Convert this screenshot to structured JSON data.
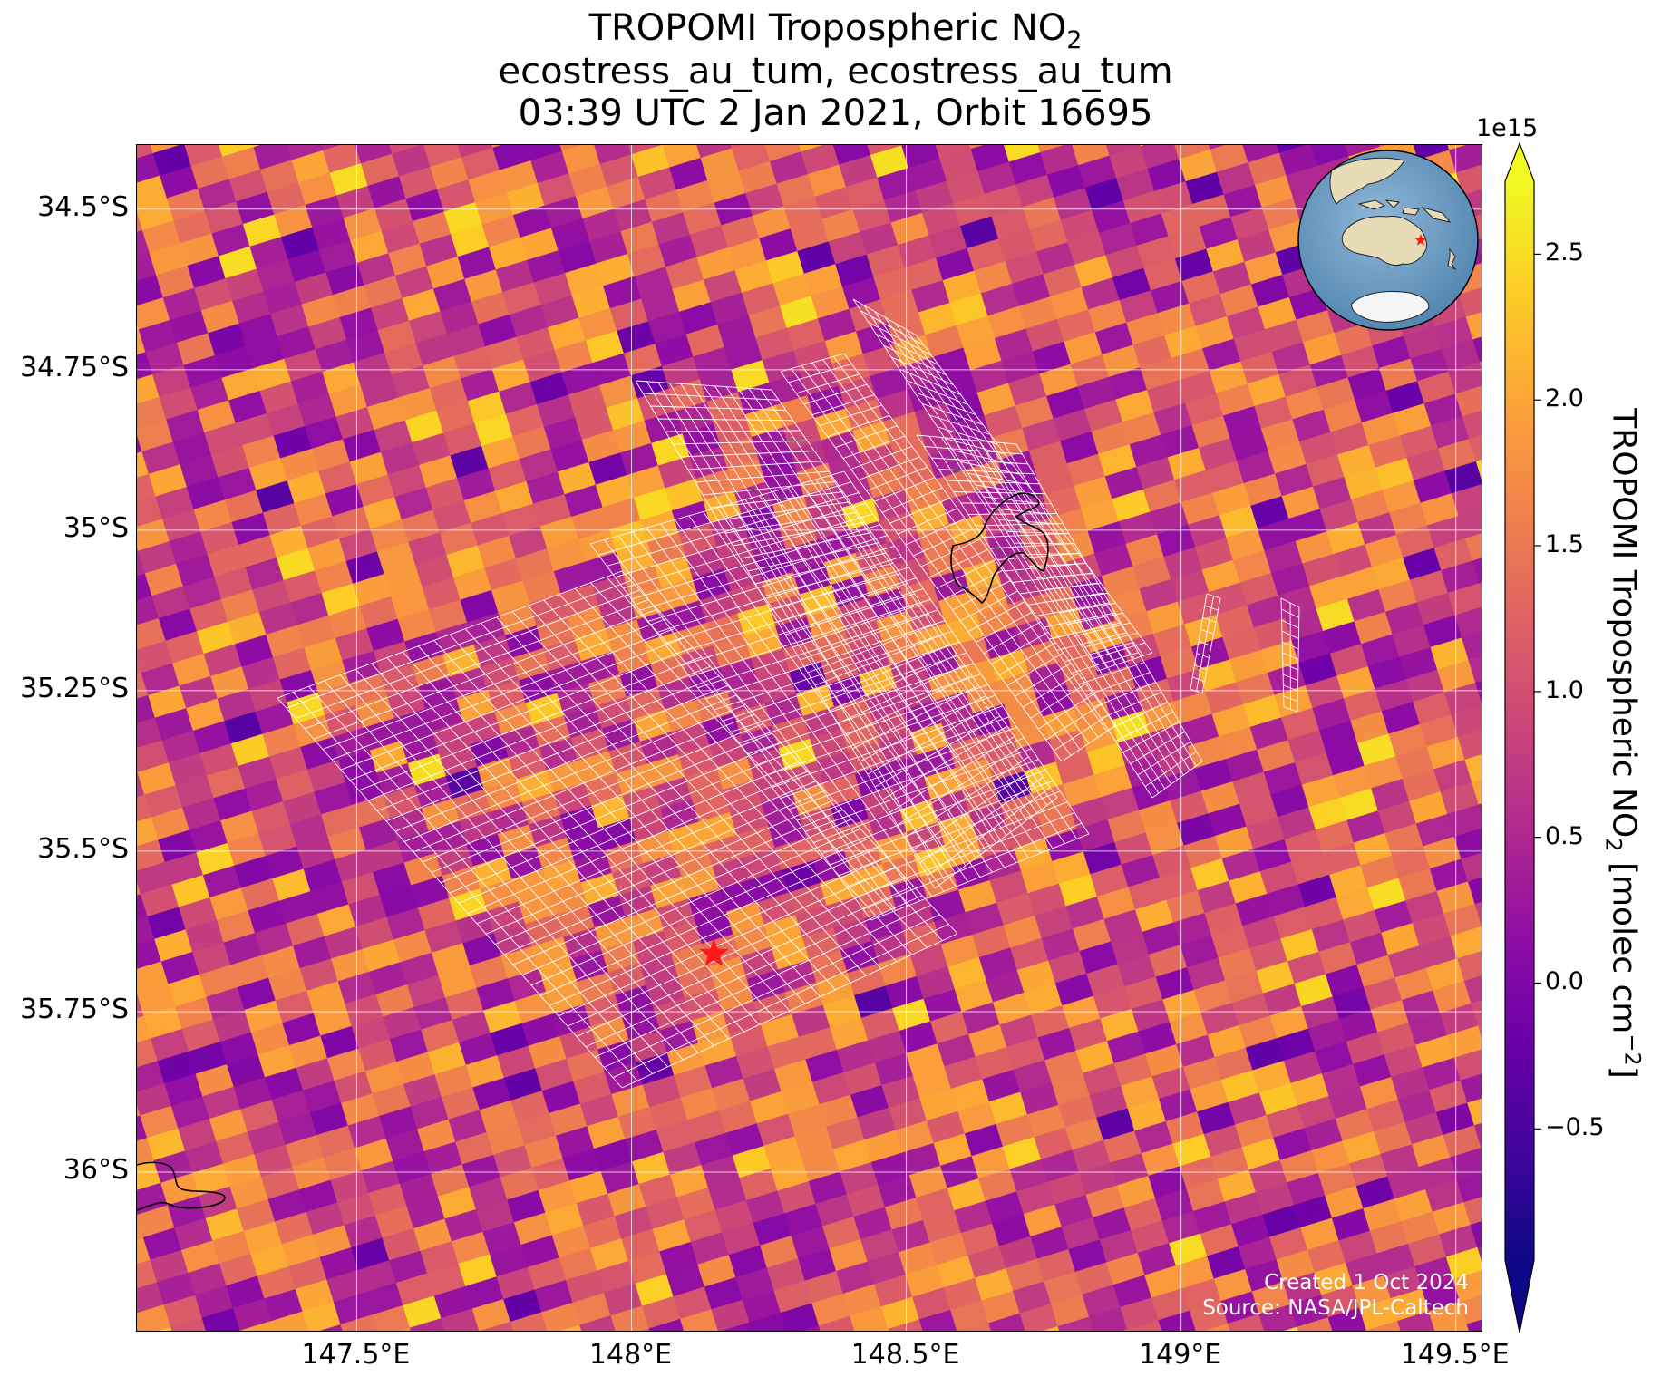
{
  "title": {
    "line1_prefix": "TROPOMI Tropospheric NO",
    "line1_sub": "2",
    "line2": "ecostress_au_tum, ecostress_au_tum",
    "line3": "03:39 UTC 2 Jan 2021, Orbit 16695"
  },
  "map": {
    "lon_range": [
      147.1,
      149.55
    ],
    "lat_range": [
      -36.25,
      -34.4
    ],
    "lon_ticks": [
      {
        "value": 147.5,
        "label": "147.5°E"
      },
      {
        "value": 148.0,
        "label": "148°E"
      },
      {
        "value": 148.5,
        "label": "148.5°E"
      },
      {
        "value": 149.0,
        "label": "149°E"
      },
      {
        "value": 149.5,
        "label": "149.5°E"
      }
    ],
    "lat_ticks": [
      {
        "value": -34.5,
        "label": "34.5°S"
      },
      {
        "value": -34.75,
        "label": "34.75°S"
      },
      {
        "value": -35.0,
        "label": "35°S"
      },
      {
        "value": -35.25,
        "label": "35.25°S"
      },
      {
        "value": -35.5,
        "label": "35.5°S"
      },
      {
        "value": -35.75,
        "label": "35.75°S"
      },
      {
        "value": -36.0,
        "label": "36°S"
      }
    ],
    "gridlines": true,
    "site_marker": {
      "lon": 148.15,
      "lat": -35.66,
      "color": "#ff1a1a",
      "shape": "star"
    },
    "inset_globe": {
      "marker_color": "#ff1a1a",
      "ocean_color": "#6a9ec4",
      "land_color": "#e8dcb8"
    }
  },
  "credits": {
    "line1": "Created 1 Oct 2024",
    "line2": "Source: NASA/JPL-Caltech"
  },
  "colorbar": {
    "exponent": "1e15",
    "label_prefix": "TROPOMI Tropospheric NO",
    "label_sub": "2",
    "label_mid": " [molec cm",
    "label_sup": "−2",
    "label_suffix": "]",
    "range": [
      -0.95,
      2.75
    ],
    "ticks": [
      {
        "value": -0.5,
        "label": "−0.5"
      },
      {
        "value": 0.0,
        "label": "0.0"
      },
      {
        "value": 0.5,
        "label": "0.5"
      },
      {
        "value": 1.0,
        "label": "1.0"
      },
      {
        "value": 1.5,
        "label": "1.5"
      },
      {
        "value": 2.0,
        "label": "2.0"
      },
      {
        "value": 2.5,
        "label": "2.5"
      }
    ],
    "extend": "both",
    "colormap": "plasma"
  }
}
